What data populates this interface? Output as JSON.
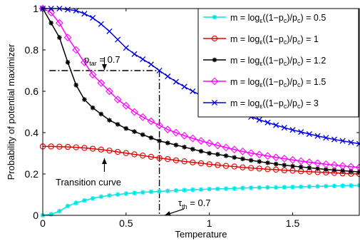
{
  "chart_data": {
    "type": "line",
    "title": "",
    "xlabel": "Temperature",
    "ylabel": "Probability of potential maximizer",
    "xlim": [
      0,
      1.9
    ],
    "ylim": [
      0,
      1
    ],
    "xticks": [
      0,
      0.5,
      1,
      1.5
    ],
    "xtick_labels": [
      "0",
      "0.5",
      "1",
      "1.5"
    ],
    "yticks": [
      0,
      0.2,
      0.4,
      0.6,
      0.8,
      1
    ],
    "ytick_labels": [
      "0",
      "0.2",
      "0.4",
      "0.6",
      "0.8",
      "1"
    ],
    "grid": false,
    "legend_placement": "top-right",
    "x": [
      0,
      0.05,
      0.1,
      0.15,
      0.2,
      0.25,
      0.3,
      0.35,
      0.4,
      0.45,
      0.5,
      0.55,
      0.6,
      0.65,
      0.7,
      0.75,
      0.8,
      0.85,
      0.9,
      0.95,
      1.0,
      1.05,
      1.1,
      1.15,
      1.2,
      1.25,
      1.3,
      1.35,
      1.4,
      1.45,
      1.5,
      1.55,
      1.6,
      1.65,
      1.7,
      1.75,
      1.8,
      1.85,
      1.9
    ],
    "series": [
      {
        "name": "m = log_ε((1−p_c)/p_c) = 0.5",
        "color": "#00e5e5",
        "marker": "star",
        "values": [
          0.0,
          0.005,
          0.02,
          0.045,
          0.06,
          0.072,
          0.082,
          0.09,
          0.096,
          0.101,
          0.105,
          0.108,
          0.111,
          0.114,
          0.116,
          0.118,
          0.12,
          0.122,
          0.124,
          0.125,
          0.127,
          0.128,
          0.129,
          0.13,
          0.132,
          0.133,
          0.134,
          0.135,
          0.135,
          0.136,
          0.137,
          0.138,
          0.139,
          0.14,
          0.141,
          0.142,
          0.143,
          0.144,
          0.145
        ]
      },
      {
        "name": "m = log_ε((1−p_c)/p_c) = 1",
        "color": "#e00000",
        "marker": "circle",
        "values": [
          0.333,
          0.333,
          0.332,
          0.331,
          0.329,
          0.326,
          0.322,
          0.318,
          0.313,
          0.307,
          0.301,
          0.295,
          0.289,
          0.283,
          0.277,
          0.272,
          0.266,
          0.261,
          0.256,
          0.252,
          0.247,
          0.243,
          0.239,
          0.236,
          0.232,
          0.229,
          0.226,
          0.223,
          0.221,
          0.218,
          0.216,
          0.213,
          0.211,
          0.209,
          0.207,
          0.205,
          0.203,
          0.201,
          0.2
        ]
      },
      {
        "name": "m = log_ε((1−p_c)/p_c) = 1.2",
        "color": "#000000",
        "marker": "asterisk",
        "values": [
          1.0,
          0.93,
          0.86,
          0.74,
          0.63,
          0.56,
          0.52,
          0.49,
          0.46,
          0.44,
          0.42,
          0.405,
          0.39,
          0.375,
          0.36,
          0.35,
          0.34,
          0.33,
          0.32,
          0.31,
          0.3,
          0.295,
          0.288,
          0.28,
          0.273,
          0.266,
          0.26,
          0.254,
          0.248,
          0.243,
          0.238,
          0.234,
          0.23,
          0.226,
          0.222,
          0.219,
          0.216,
          0.213,
          0.21
        ]
      },
      {
        "name": "m = log_ε((1−p_c)/p_c) = 1.5",
        "color": "#ff00ff",
        "marker": "diamond",
        "values": [
          1.0,
          0.98,
          0.93,
          0.86,
          0.8,
          0.74,
          0.68,
          0.64,
          0.6,
          0.56,
          0.53,
          0.5,
          0.475,
          0.455,
          0.435,
          0.415,
          0.4,
          0.385,
          0.372,
          0.36,
          0.349,
          0.338,
          0.328,
          0.318,
          0.309,
          0.301,
          0.294,
          0.287,
          0.28,
          0.274,
          0.268,
          0.262,
          0.257,
          0.252,
          0.247,
          0.243,
          0.239,
          0.235,
          0.232
        ]
      },
      {
        "name": "m = log_ε((1−p_c)/p_c) = 3",
        "color": "#0000e0",
        "marker": "cross",
        "values": [
          1.0,
          1.0,
          1.0,
          0.995,
          0.99,
          0.975,
          0.955,
          0.925,
          0.89,
          0.85,
          0.81,
          0.78,
          0.755,
          0.73,
          0.7,
          0.672,
          0.646,
          0.622,
          0.6,
          0.58,
          0.56,
          0.541,
          0.524,
          0.507,
          0.491,
          0.476,
          0.462,
          0.449,
          0.436,
          0.424,
          0.413,
          0.403,
          0.393,
          0.384,
          0.375,
          0.367,
          0.36,
          0.353,
          0.346
        ]
      }
    ],
    "annotations": {
      "p_tar_label": "p",
      "p_tar_sub": "tar",
      "p_tar_value": " = 0.7",
      "p_tar_y": 0.7,
      "tau_label": "τ",
      "tau_sub": "th",
      "tau_value": " = 0.7",
      "tau_x": 0.7,
      "transition_label": "Transition curve"
    }
  }
}
